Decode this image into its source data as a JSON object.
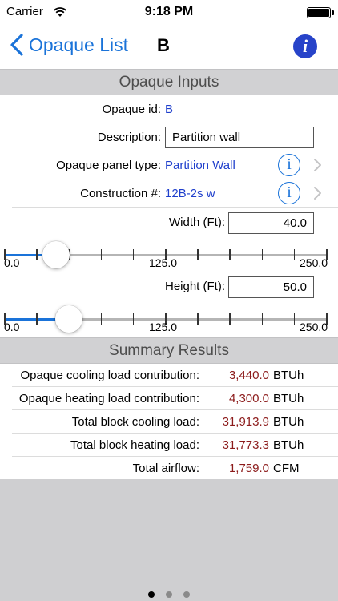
{
  "status_bar": {
    "carrier": "Carrier",
    "time": "9:18 PM",
    "battery_level": 1.0
  },
  "nav": {
    "back_label": "Opaque List",
    "title": "B",
    "info_icon": "i"
  },
  "inputs_section": {
    "title": "Opaque Inputs",
    "opaque_id": {
      "label": "Opaque id:",
      "value": "B"
    },
    "description": {
      "label": "Description:",
      "value": "Partition wall"
    },
    "panel_type": {
      "label": "Opaque panel type:",
      "value": "Partition Wall",
      "info_icon": "i"
    },
    "construction": {
      "label": "Construction #:",
      "value": "12B-2s w",
      "info_icon": "i"
    },
    "width": {
      "label": "Width (Ft):",
      "value": "40.0"
    },
    "height": {
      "label": "Height (Ft):",
      "value": "50.0"
    },
    "width_slider": {
      "min_label": "0.0",
      "mid_label": "125.0",
      "max_label": "250.0",
      "min": 0,
      "max": 250,
      "value": 40
    },
    "height_slider": {
      "min_label": "0.0",
      "mid_label": "125.0",
      "max_label": "250.0",
      "min": 0,
      "max": 250,
      "value": 50
    }
  },
  "summary_section": {
    "title": "Summary Results",
    "rows": [
      {
        "label": "Opaque cooling load contribution:",
        "value": "3,440.0",
        "unit": "BTUh"
      },
      {
        "label": "Opaque heating load contribution:",
        "value": "4,300.0",
        "unit": "BTUh"
      },
      {
        "label": "Total block cooling load:",
        "value": "31,913.9",
        "unit": "BTUh"
      },
      {
        "label": "Total block heating load:",
        "value": "31,773.3",
        "unit": "BTUh"
      },
      {
        "label": "Total airflow:",
        "value": "1,759.0",
        "unit": "CFM"
      }
    ]
  },
  "page_indicator": {
    "total": 3,
    "current": 1
  },
  "colors": {
    "accent": "#1a73d9",
    "value_blue": "#1f3fcc",
    "result_red": "#8c1b1b",
    "section_gray": "#d1d1d3"
  }
}
